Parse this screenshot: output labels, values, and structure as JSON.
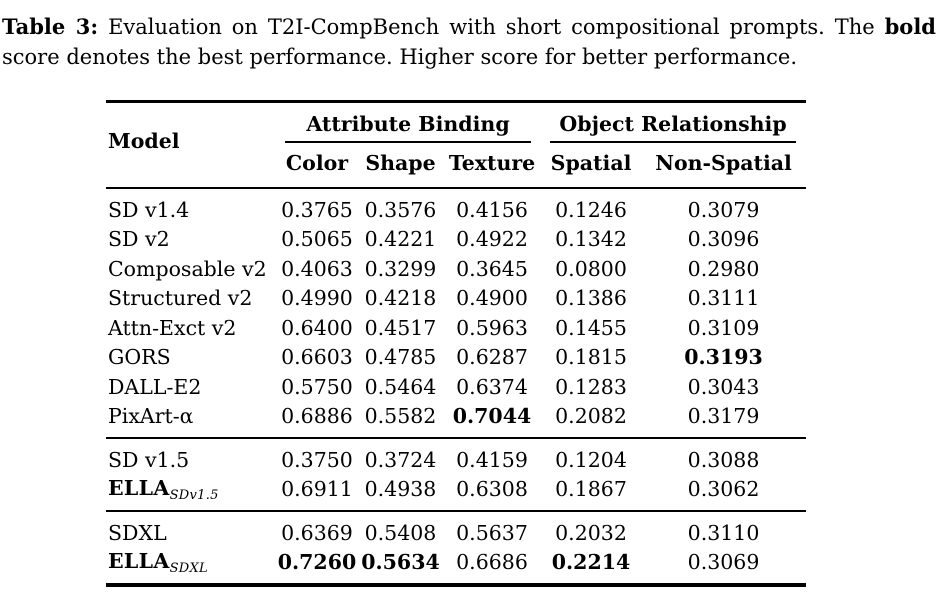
{
  "caption": {
    "label": "Table 3:",
    "line1_rest": "Evaluation on T2I-CompBench with short compositional prompts. The",
    "line1_bold_word": "bold",
    "line2": "score denotes the best performance. Higher score for better performance."
  },
  "table": {
    "model_header": "Model",
    "groups": [
      {
        "label": "Attribute Binding",
        "span": 3
      },
      {
        "label": "Object Relationship",
        "span": 2
      }
    ],
    "columns": [
      "Color",
      "Shape",
      "Texture",
      "Spatial",
      "Non-Spatial"
    ],
    "text_color": "#000000",
    "background_color": "#ffffff",
    "sections": [
      {
        "rows": [
          {
            "model": {
              "text": "SD v1.4"
            },
            "cells": [
              {
                "v": "0.3765"
              },
              {
                "v": "0.3576"
              },
              {
                "v": "0.4156"
              },
              {
                "v": "0.1246"
              },
              {
                "v": "0.3079"
              }
            ]
          },
          {
            "model": {
              "text": "SD v2"
            },
            "cells": [
              {
                "v": "0.5065"
              },
              {
                "v": "0.4221"
              },
              {
                "v": "0.4922"
              },
              {
                "v": "0.1342"
              },
              {
                "v": "0.3096"
              }
            ]
          },
          {
            "model": {
              "text": "Composable v2"
            },
            "cells": [
              {
                "v": "0.4063"
              },
              {
                "v": "0.3299"
              },
              {
                "v": "0.3645"
              },
              {
                "v": "0.0800"
              },
              {
                "v": "0.2980"
              }
            ]
          },
          {
            "model": {
              "text": "Structured v2"
            },
            "cells": [
              {
                "v": "0.4990"
              },
              {
                "v": "0.4218"
              },
              {
                "v": "0.4900"
              },
              {
                "v": "0.1386"
              },
              {
                "v": "0.3111"
              }
            ]
          },
          {
            "model": {
              "text": "Attn-Exct v2"
            },
            "cells": [
              {
                "v": "0.6400"
              },
              {
                "v": "0.4517"
              },
              {
                "v": "0.5963"
              },
              {
                "v": "0.1455"
              },
              {
                "v": "0.3109"
              }
            ]
          },
          {
            "model": {
              "text": "GORS"
            },
            "cells": [
              {
                "v": "0.6603"
              },
              {
                "v": "0.4785"
              },
              {
                "v": "0.6287"
              },
              {
                "v": "0.1815"
              },
              {
                "v": "0.3193",
                "bold": true
              }
            ]
          },
          {
            "model": {
              "text": "DALL-E2"
            },
            "cells": [
              {
                "v": "0.5750"
              },
              {
                "v": "0.5464"
              },
              {
                "v": "0.6374"
              },
              {
                "v": "0.1283"
              },
              {
                "v": "0.3043"
              }
            ]
          },
          {
            "model": {
              "text": "PixArt-α"
            },
            "cells": [
              {
                "v": "0.6886"
              },
              {
                "v": "0.5582"
              },
              {
                "v": "0.7044",
                "bold": true
              },
              {
                "v": "0.2082"
              },
              {
                "v": "0.3179"
              }
            ]
          }
        ]
      },
      {
        "rows": [
          {
            "model": {
              "text": "SD v1.5"
            },
            "cells": [
              {
                "v": "0.3750"
              },
              {
                "v": "0.3724"
              },
              {
                "v": "0.4159"
              },
              {
                "v": "0.1204"
              },
              {
                "v": "0.3088"
              }
            ]
          },
          {
            "model": {
              "text": "ELLA",
              "bold": true,
              "sub": "SDv1.5"
            },
            "cells": [
              {
                "v": "0.6911"
              },
              {
                "v": "0.4938"
              },
              {
                "v": "0.6308"
              },
              {
                "v": "0.1867"
              },
              {
                "v": "0.3062"
              }
            ]
          }
        ]
      },
      {
        "rows": [
          {
            "model": {
              "text": "SDXL"
            },
            "cells": [
              {
                "v": "0.6369"
              },
              {
                "v": "0.5408"
              },
              {
                "v": "0.5637"
              },
              {
                "v": "0.2032"
              },
              {
                "v": "0.3110"
              }
            ]
          },
          {
            "model": {
              "text": "ELLA",
              "bold": true,
              "sub": "SDXL"
            },
            "cells": [
              {
                "v": "0.7260",
                "bold": true
              },
              {
                "v": "0.5634",
                "bold": true
              },
              {
                "v": "0.6686"
              },
              {
                "v": "0.2214",
                "bold": true
              },
              {
                "v": "0.3069"
              }
            ]
          }
        ]
      }
    ]
  }
}
